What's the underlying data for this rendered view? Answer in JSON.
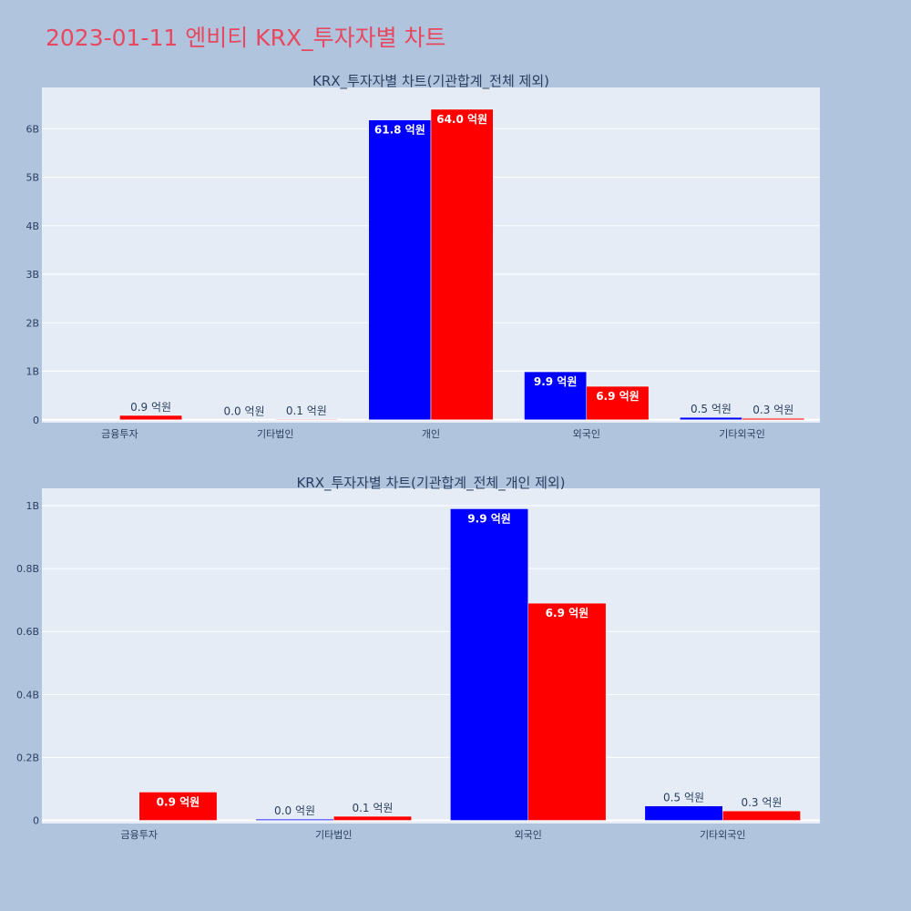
{
  "page": {
    "title": "2023-01-11 엔비티 KRX_투자자별 차트"
  },
  "colors": {
    "background": "#b0c4de",
    "plot_bg": "#e5ecf6",
    "title": "#e8485f",
    "series_buy": "#0000ff",
    "series_sell": "#ff0000",
    "text": "#2a3f5f"
  },
  "chart_data": [
    {
      "type": "bar",
      "title": "KRX_투자자별 차트(기관합계_전체 제외)",
      "categories": [
        "금융투자",
        "기타법인",
        "개인",
        "외국인",
        "기타외국인"
      ],
      "series": [
        {
          "values": [
            0,
            4000000,
            6180000000,
            990000000,
            50000000
          ],
          "labels": [
            "",
            "0.0 억원",
            "61.8 억원",
            "9.9 억원",
            "0.5 억원"
          ]
        },
        {
          "values": [
            90000000,
            13000000,
            6400000000,
            690000000,
            30000000
          ],
          "labels": [
            "0.9 억원",
            "0.1 억원",
            "64.0 억원",
            "6.9 억원",
            "0.3 억원"
          ]
        }
      ],
      "ylim": [
        -60000000,
        6850000000
      ],
      "yticks": [
        0,
        1000000000,
        2000000000,
        3000000000,
        4000000000,
        5000000000,
        6000000000
      ],
      "ytick_labels": [
        "0",
        "1B",
        "2B",
        "3B",
        "4B",
        "5B",
        "6B"
      ],
      "grid": true,
      "legend": "none"
    },
    {
      "type": "bar",
      "title": "KRX_투자자별 차트(기관합계_전체_개인 제외)",
      "categories": [
        "금융투자",
        "기타법인",
        "외국인",
        "기타외국인"
      ],
      "series": [
        {
          "values": [
            0,
            4000000,
            990000000,
            46000000
          ],
          "labels": [
            "",
            "0.0 억원",
            "9.9 억원",
            "0.5 억원"
          ]
        },
        {
          "values": [
            90000000,
            13000000,
            690000000,
            30000000
          ],
          "labels": [
            "0.9 억원",
            "0.1 억원",
            "6.9 억원",
            "0.3 억원"
          ]
        }
      ],
      "ylim": [
        -10000000,
        1055000000
      ],
      "yticks": [
        0,
        200000000,
        400000000,
        600000000,
        800000000,
        1000000000
      ],
      "ytick_labels": [
        "0",
        "0.2B",
        "0.4B",
        "0.6B",
        "0.8B",
        "1B"
      ],
      "grid": true,
      "legend": "none"
    }
  ]
}
